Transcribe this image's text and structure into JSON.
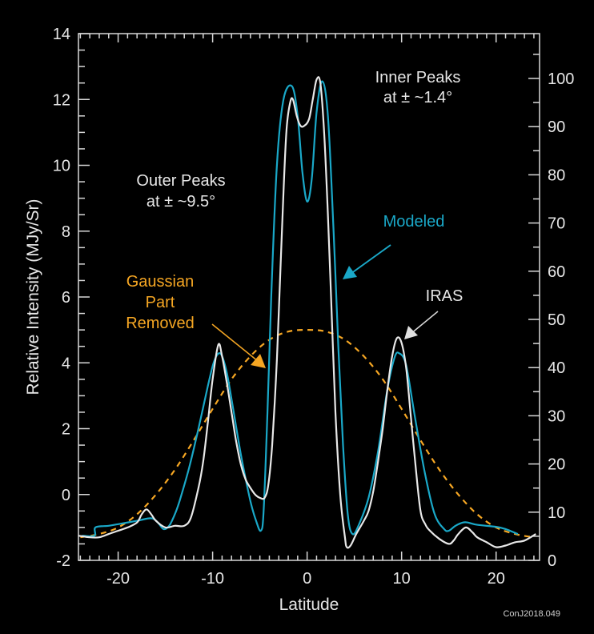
{
  "chart_data": {
    "type": "line",
    "xlabel": "Latitude",
    "ylabel": "Relative Intensity (MJy/Sr)",
    "xlim": [
      -24.2,
      24.6
    ],
    "ylim": [
      -2,
      14
    ],
    "y2lim": [
      0,
      109.3
    ],
    "x_ticks": [
      "-20",
      "-10",
      "0",
      "10",
      "20"
    ],
    "x_tick_values": [
      -20,
      -10,
      0,
      10,
      20
    ],
    "y_ticks": [
      "-2",
      "0",
      "2",
      "4",
      "6",
      "8",
      "10",
      "12",
      "14"
    ],
    "y_tick_values": [
      -2,
      0,
      2,
      4,
      6,
      8,
      10,
      12,
      14
    ],
    "y2_ticks": [
      "0",
      "10",
      "20",
      "30",
      "40",
      "50",
      "60",
      "70",
      "80",
      "90",
      "100"
    ],
    "y2_tick_values": [
      0,
      10,
      20,
      30,
      40,
      50,
      60,
      70,
      80,
      90,
      100
    ],
    "grid": false,
    "series": [
      {
        "name": "IRAS",
        "color": "#e8e8e8",
        "style": "solid",
        "points": [
          [
            -24.2,
            -1.25
          ],
          [
            -23,
            -1.3
          ],
          [
            -22,
            -1.3
          ],
          [
            -21,
            -1.2
          ],
          [
            -20,
            -1.1
          ],
          [
            -19,
            -1.0
          ],
          [
            -18,
            -0.85
          ],
          [
            -17.5,
            -0.6
          ],
          [
            -17,
            -0.45
          ],
          [
            -16.5,
            -0.6
          ],
          [
            -16,
            -0.8
          ],
          [
            -15,
            -1.0
          ],
          [
            -14,
            -0.95
          ],
          [
            -13,
            -0.95
          ],
          [
            -12.3,
            -0.7
          ],
          [
            -11.5,
            0.2
          ],
          [
            -11,
            1.0
          ],
          [
            -10.5,
            2.2
          ],
          [
            -10,
            3.5
          ],
          [
            -9.4,
            4.55
          ],
          [
            -9,
            4.2
          ],
          [
            -8.5,
            3.4
          ],
          [
            -8,
            2.5
          ],
          [
            -7.5,
            1.6
          ],
          [
            -7,
            0.9
          ],
          [
            -6.5,
            0.45
          ],
          [
            -6,
            0.2
          ],
          [
            -5.5,
            0.0
          ],
          [
            -5,
            -0.1
          ],
          [
            -4.5,
            -0.1
          ],
          [
            -4.1,
            0.3
          ],
          [
            -3.7,
            1.5
          ],
          [
            -3.3,
            3.5
          ],
          [
            -3,
            5.5
          ],
          [
            -2.6,
            8.5
          ],
          [
            -2.2,
            11
          ],
          [
            -1.8,
            11.9
          ],
          [
            -1.5,
            12.0
          ],
          [
            -1.1,
            11.5
          ],
          [
            -0.7,
            11.2
          ],
          [
            -0.3,
            11.2
          ],
          [
            0.2,
            11.4
          ],
          [
            0.6,
            12.0
          ],
          [
            1.0,
            12.6
          ],
          [
            1.4,
            12.5
          ],
          [
            1.8,
            11.0
          ],
          [
            2.2,
            8.5
          ],
          [
            2.6,
            5.5
          ],
          [
            3.0,
            2.5
          ],
          [
            3.5,
            0.0
          ],
          [
            4.0,
            -1.3
          ],
          [
            4.2,
            -1.6
          ],
          [
            4.6,
            -1.55
          ],
          [
            5.2,
            -1.2
          ],
          [
            6,
            -0.8
          ],
          [
            6.5,
            -0.5
          ],
          [
            7,
            0.1
          ],
          [
            7.5,
            1.0
          ],
          [
            8,
            2.0
          ],
          [
            8.5,
            3.2
          ],
          [
            9,
            4.2
          ],
          [
            9.5,
            4.75
          ],
          [
            10,
            4.6
          ],
          [
            10.5,
            3.8
          ],
          [
            11,
            2.3
          ],
          [
            11.5,
            0.8
          ],
          [
            12,
            -0.5
          ],
          [
            12.5,
            -0.9
          ],
          [
            13,
            -1.1
          ],
          [
            14,
            -1.35
          ],
          [
            15,
            -1.5
          ],
          [
            15.5,
            -1.4
          ],
          [
            16,
            -1.2
          ],
          [
            16.8,
            -1.0
          ],
          [
            17.5,
            -1.15
          ],
          [
            18,
            -1.3
          ],
          [
            19,
            -1.45
          ],
          [
            20,
            -1.6
          ],
          [
            21,
            -1.55
          ],
          [
            22,
            -1.45
          ],
          [
            23,
            -1.4
          ],
          [
            24.2,
            -1.2
          ]
        ]
      },
      {
        "name": "Modeled",
        "color": "#1aa8c8",
        "style": "solid",
        "points": [
          [
            -23.8,
            -1.25
          ],
          [
            -22.5,
            -1.25
          ],
          [
            -22.4,
            -1.0
          ],
          [
            -21,
            -0.95
          ],
          [
            -20,
            -0.9
          ],
          [
            -18,
            -0.8
          ],
          [
            -16.5,
            -0.72
          ],
          [
            -15.8,
            -0.85
          ],
          [
            -15.2,
            -1.05
          ],
          [
            -14.6,
            -0.95
          ],
          [
            -14,
            -0.6
          ],
          [
            -13.5,
            -0.2
          ],
          [
            -12.5,
            0.8
          ],
          [
            -11.5,
            2.0
          ],
          [
            -10.5,
            3.3
          ],
          [
            -9.9,
            4.0
          ],
          [
            -9.4,
            4.28
          ],
          [
            -9,
            4.2
          ],
          [
            -8.5,
            3.7
          ],
          [
            -8,
            2.9
          ],
          [
            -7,
            1.2
          ],
          [
            -6,
            -0.2
          ],
          [
            -5.4,
            -0.8
          ],
          [
            -4.9,
            -1.1
          ],
          [
            -4.6,
            -0.5
          ],
          [
            -4.2,
            2.5
          ],
          [
            -3.8,
            6.0
          ],
          [
            -3.2,
            10.0
          ],
          [
            -2.5,
            12.0
          ],
          [
            -1.6,
            12.4
          ],
          [
            -1.0,
            11.5
          ],
          [
            -0.5,
            9.8
          ],
          [
            0,
            8.9
          ],
          [
            0.5,
            9.6
          ],
          [
            1.0,
            11.6
          ],
          [
            1.6,
            12.55
          ],
          [
            2.2,
            11.5
          ],
          [
            2.8,
            8.0
          ],
          [
            3.3,
            4.5
          ],
          [
            3.8,
            1.5
          ],
          [
            4.3,
            -0.6
          ],
          [
            4.8,
            -1.2
          ],
          [
            5.5,
            -0.9
          ],
          [
            6.5,
            -0.1
          ],
          [
            7.5,
            1.3
          ],
          [
            8.5,
            3.2
          ],
          [
            9.3,
            4.2
          ],
          [
            9.8,
            4.28
          ],
          [
            10.3,
            4.1
          ],
          [
            10.7,
            3.6
          ],
          [
            11.5,
            2.2
          ],
          [
            12.5,
            0.6
          ],
          [
            13.5,
            -0.6
          ],
          [
            14.5,
            -1.05
          ],
          [
            15,
            -1.1
          ],
          [
            15.7,
            -0.95
          ],
          [
            16.5,
            -0.85
          ],
          [
            17,
            -0.85
          ],
          [
            18,
            -0.92
          ],
          [
            20,
            -0.98
          ],
          [
            21,
            -1.05
          ],
          [
            22.3,
            -1.2
          ]
        ]
      },
      {
        "name": "Gaussian Part Removed",
        "color": "#f5a623",
        "style": "dashed",
        "points": [
          [
            -24,
            -1.3
          ],
          [
            -22,
            -1.2
          ],
          [
            -20,
            -1.0
          ],
          [
            -18,
            -0.6
          ],
          [
            -16,
            0.0
          ],
          [
            -14,
            0.75
          ],
          [
            -12,
            1.65
          ],
          [
            -10,
            2.6
          ],
          [
            -8,
            3.5
          ],
          [
            -6,
            4.2
          ],
          [
            -4,
            4.7
          ],
          [
            -2,
            4.95
          ],
          [
            0,
            5.0
          ],
          [
            2,
            4.95
          ],
          [
            4,
            4.7
          ],
          [
            6,
            4.2
          ],
          [
            8,
            3.5
          ],
          [
            10,
            2.6
          ],
          [
            12,
            1.65
          ],
          [
            14,
            0.75
          ],
          [
            16,
            0.0
          ],
          [
            18,
            -0.6
          ],
          [
            20,
            -1.0
          ],
          [
            22,
            -1.2
          ],
          [
            24,
            -1.3
          ]
        ]
      }
    ],
    "annotations": {
      "inner_peaks": [
        "Inner Peaks",
        "at ± ~1.4°"
      ],
      "outer_peaks": [
        "Outer Peaks",
        "at ± ~9.5°"
      ],
      "modeled": "Modeled",
      "iras": "IRAS",
      "gaussian": [
        "Gaussian",
        "Part",
        "Removed"
      ]
    },
    "credit": "ConJ2018.049"
  }
}
